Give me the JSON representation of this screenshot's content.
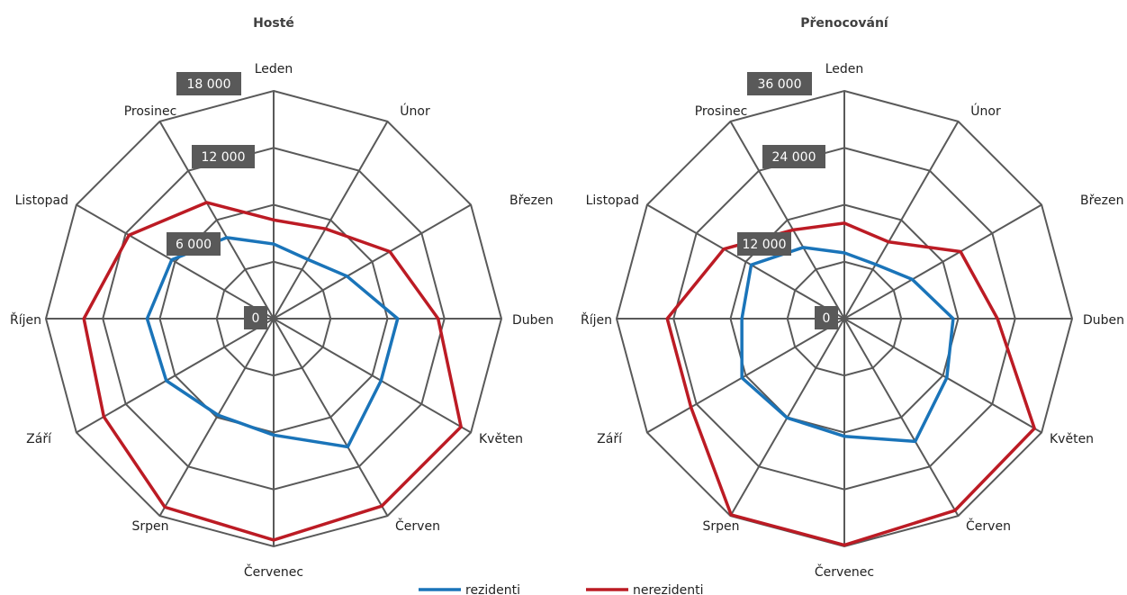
{
  "legend": {
    "items": [
      {
        "label": "rezidenti",
        "color": "#1a74b9"
      },
      {
        "label": "nerezidenti",
        "color": "#bc1b24"
      }
    ]
  },
  "chart_data": [
    {
      "type": "radar",
      "title": "Hosté",
      "categories": [
        "Leden",
        "Únor",
        "Březen",
        "Duben",
        "Květen",
        "Červen",
        "Červenec",
        "Srpen",
        "Září",
        "Říjen",
        "Listopad",
        "Prosinec"
      ],
      "rmax": 18000,
      "ticks": [
        0,
        6000,
        12000,
        18000
      ],
      "tick_labels": [
        "0",
        "6 000",
        "12 000",
        "18 000"
      ],
      "series": [
        {
          "name": "rezidenti",
          "color": "#1a74b9",
          "values": [
            5900,
            5400,
            6700,
            9800,
            9800,
            11700,
            9200,
            8800,
            9800,
            10000,
            9300,
            7400
          ]
        },
        {
          "name": "nerezidenti",
          "color": "#bc1b24",
          "values": [
            7800,
            8200,
            10600,
            13000,
            17100,
            17100,
            17500,
            17200,
            15500,
            15000,
            13200,
            10600
          ]
        }
      ]
    },
    {
      "type": "radar",
      "title": "Přenocování",
      "categories": [
        "Leden",
        "Únor",
        "Březen",
        "Duben",
        "Květen",
        "Červen",
        "Červenec",
        "Srpen",
        "Září",
        "Říjen",
        "Listopad",
        "Prosinec"
      ],
      "rmax": 36000,
      "ticks": [
        0,
        12000,
        24000,
        36000
      ],
      "tick_labels": [
        "0",
        "12 000",
        "24 000",
        "36 000"
      ],
      "series": [
        {
          "name": "rezidenti",
          "color": "#1a74b9",
          "values": [
            10400,
            9900,
            12400,
            17200,
            18700,
            22400,
            18600,
            18100,
            18700,
            16200,
            17000,
            13000
          ]
        },
        {
          "name": "nerezidenti",
          "color": "#bc1b24",
          "values": [
            15100,
            14000,
            21200,
            24200,
            34700,
            35000,
            35800,
            35800,
            28000,
            28000,
            22000,
            16200
          ]
        }
      ]
    }
  ]
}
